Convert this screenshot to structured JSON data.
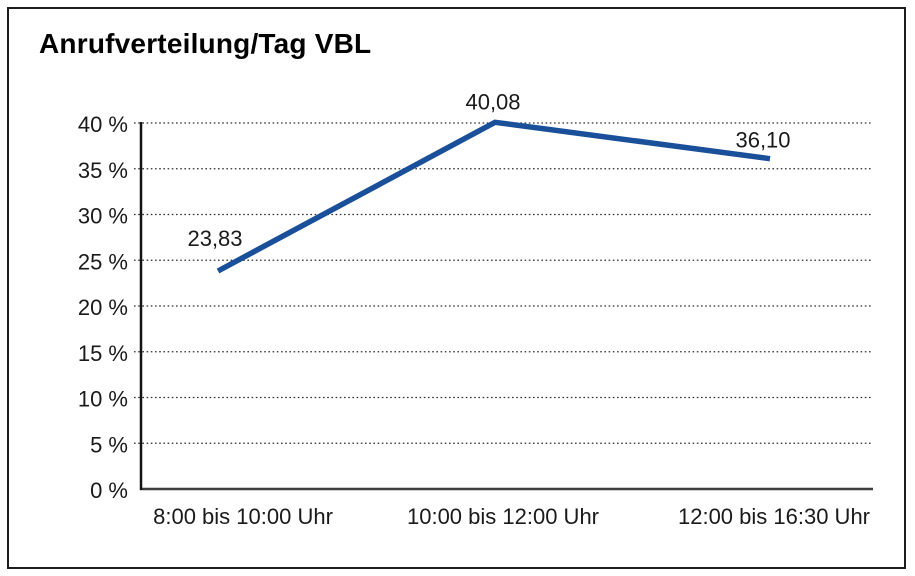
{
  "chart_data": {
    "type": "line",
    "title": "Anrufverteilung/Tag VBL",
    "categories": [
      "8:00 bis 10:00 Uhr",
      "10:00 bis 12:00 Uhr",
      "12:00 bis 16:30 Uhr"
    ],
    "values": [
      23.83,
      40.08,
      36.1
    ],
    "data_labels": [
      "23,83",
      "40,08",
      "36,10"
    ],
    "xlabel": "",
    "ylabel": "",
    "ylim": [
      0,
      40
    ],
    "y_ticks": [
      0,
      5,
      10,
      15,
      20,
      25,
      30,
      35,
      40
    ],
    "y_tick_labels": [
      "0 %",
      "5 %",
      "10 %",
      "15 %",
      "20 %",
      "25 %",
      "30 %",
      "35 %",
      "40 %"
    ],
    "grid": "horizontal-dotted",
    "legend": "none",
    "line_color": "#1A4F9A",
    "text_color": "#1a1a1a",
    "background_color": "#ffffff",
    "border_color": "#1c1c1c"
  }
}
